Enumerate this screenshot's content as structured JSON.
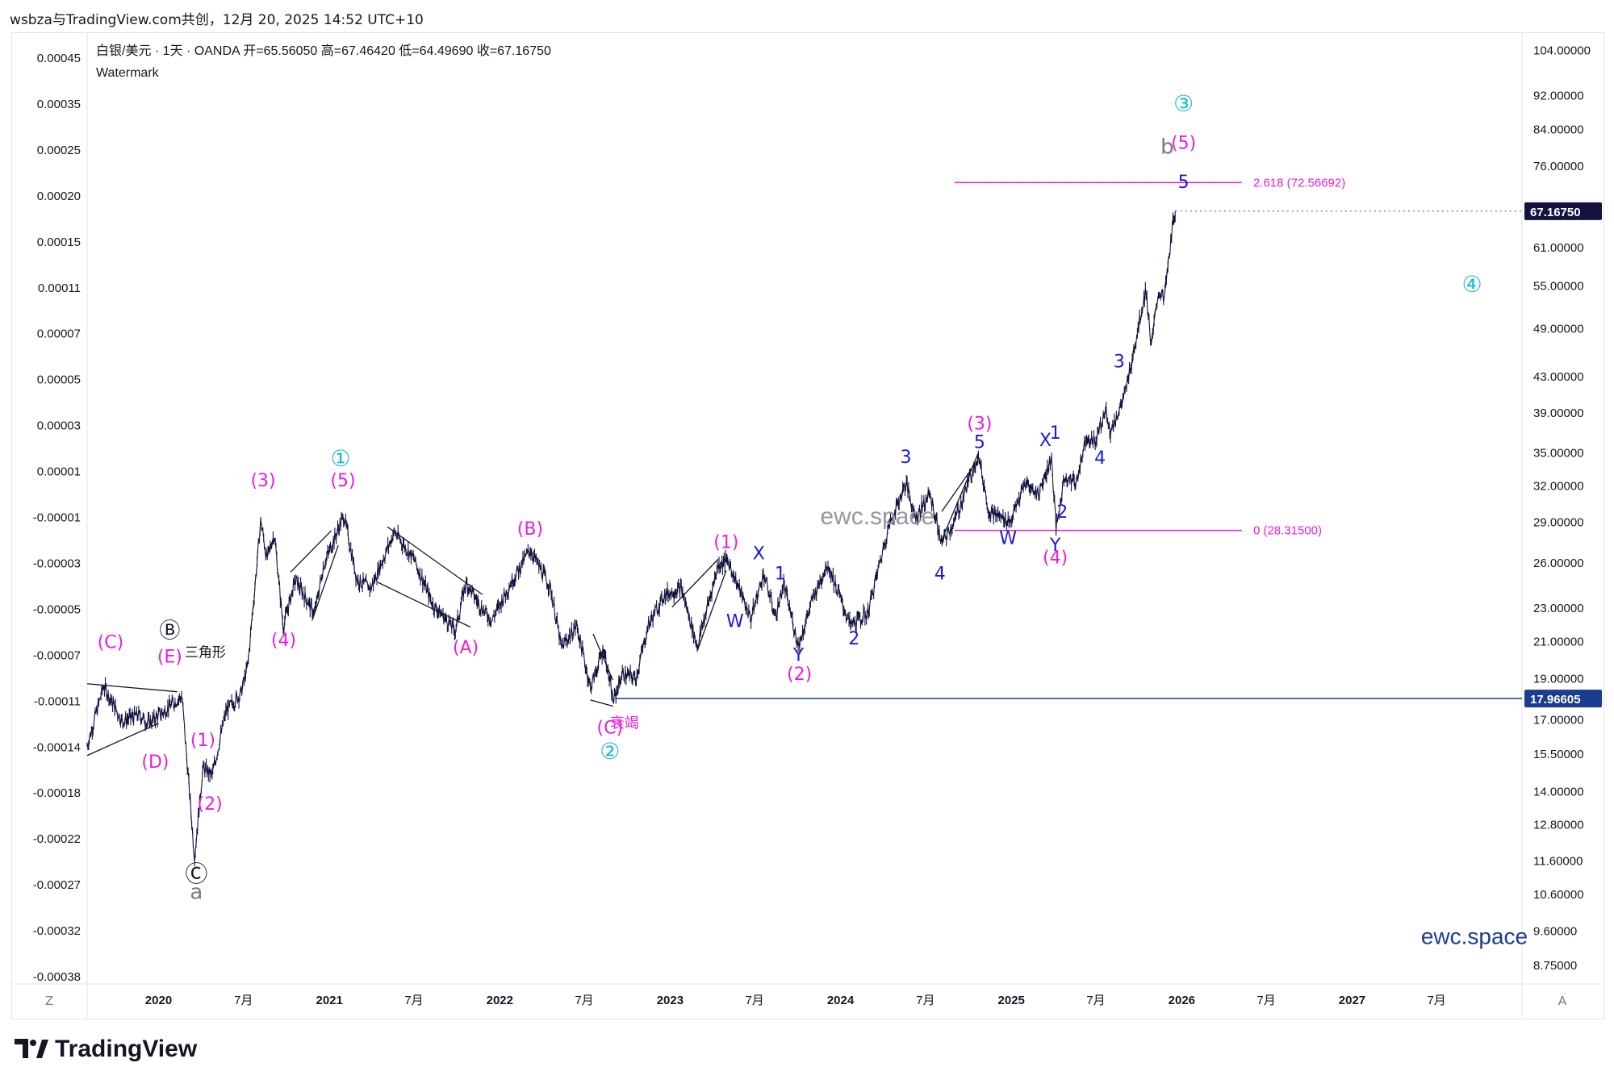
{
  "header": {
    "published": "wsbza与TradingView.com共创，12月 20, 2025 14:52 UTC+10",
    "symbol_line": "白银/美元 · 1天 · OANDA  开=65.56050  高=67.46420  低=64.49690  收=67.16750",
    "watermark_label": "Watermark"
  },
  "brand": {
    "name": "TradingView"
  },
  "axis_buttons": {
    "left": "Z",
    "right": "A"
  },
  "chart_data": {
    "type": "line",
    "series_kind": "candlestick-ohlc (rendered as dense bars)",
    "right_axis": {
      "scale": "log",
      "ticks": [
        8.75,
        9.6,
        10.6,
        11.6,
        12.8,
        14.0,
        15.5,
        17.0,
        19.0,
        21.0,
        23.0,
        26.0,
        29.0,
        32.0,
        35.0,
        39.0,
        43.0,
        49.0,
        55.0,
        61.0,
        76.0,
        84.0,
        92.0,
        104.0
      ],
      "tick_labels": [
        "8.75000",
        "9.60000",
        "10.60000",
        "11.60000",
        "12.80000",
        "14.00000",
        "15.50000",
        "17.00000",
        "19.00000",
        "21.00000",
        "23.00000",
        "26.00000",
        "29.00000",
        "32.00000",
        "35.00000",
        "39.00000",
        "43.00000",
        "49.00000",
        "55.00000",
        "61.00000",
        "76.00000",
        "84.00000",
        "92.00000",
        "104.00000"
      ],
      "last_price_label": "67.16750",
      "last_price": 67.1675,
      "hline_label": "17.96605",
      "hline_value": 17.96605
    },
    "left_axis": {
      "tick_labels": [
        "0.00045",
        "0.00035",
        "0.00025",
        "0.00020",
        "0.00015",
        "0.00011",
        "0.00007",
        "0.00005",
        "0.00003",
        "0.00001",
        "-0.00001",
        "-0.00003",
        "-0.00005",
        "-0.00007",
        "-0.00011",
        "-0.00014",
        "-0.00018",
        "-0.00022",
        "-0.00027",
        "-0.00032",
        "-0.00038"
      ]
    },
    "x_axis": {
      "range": [
        "2019-08-01",
        "2027-12-31"
      ],
      "ticks": [
        {
          "date": "2020-01-01",
          "label": "2020",
          "bold": true
        },
        {
          "date": "2020-07-01",
          "label": "7月",
          "bold": false
        },
        {
          "date": "2021-01-01",
          "label": "2021",
          "bold": true
        },
        {
          "date": "2021-07-01",
          "label": "7月",
          "bold": false
        },
        {
          "date": "2022-01-01",
          "label": "2022",
          "bold": true
        },
        {
          "date": "2022-07-01",
          "label": "7月",
          "bold": false
        },
        {
          "date": "2023-01-01",
          "label": "2023",
          "bold": true
        },
        {
          "date": "2023-07-01",
          "label": "7月",
          "bold": false
        },
        {
          "date": "2024-01-01",
          "label": "2024",
          "bold": true
        },
        {
          "date": "2024-07-01",
          "label": "7月",
          "bold": false
        },
        {
          "date": "2025-01-01",
          "label": "2025",
          "bold": true
        },
        {
          "date": "2025-07-01",
          "label": "7月",
          "bold": false
        },
        {
          "date": "2026-01-01",
          "label": "2026",
          "bold": true
        },
        {
          "date": "2026-07-01",
          "label": "7月",
          "bold": false
        },
        {
          "date": "2027-01-01",
          "label": "2027",
          "bold": true
        },
        {
          "date": "2027-07-01",
          "label": "7月",
          "bold": false
        }
      ]
    },
    "price_path": [
      [
        "2019-08-01",
        15.8
      ],
      [
        "2019-09-05",
        18.6
      ],
      [
        "2019-10-15",
        16.9
      ],
      [
        "2019-11-20",
        17.2
      ],
      [
        "2019-12-10",
        16.8
      ],
      [
        "2020-01-10",
        17.3
      ],
      [
        "2020-02-20",
        18.1
      ],
      [
        "2020-03-18",
        11.7
      ],
      [
        "2020-04-05",
        14.9
      ],
      [
        "2020-04-25",
        14.6
      ],
      [
        "2020-05-25",
        17.4
      ],
      [
        "2020-06-25",
        18.2
      ],
      [
        "2020-07-10",
        19.6
      ],
      [
        "2020-08-07",
        29.1
      ],
      [
        "2020-08-20",
        26.2
      ],
      [
        "2020-09-05",
        28.1
      ],
      [
        "2020-09-24",
        21.8
      ],
      [
        "2020-10-20",
        24.8
      ],
      [
        "2020-11-30",
        22.6
      ],
      [
        "2020-12-20",
        25.8
      ],
      [
        "2021-02-01",
        29.5
      ],
      [
        "2021-03-01",
        24.8
      ],
      [
        "2021-03-31",
        24.2
      ],
      [
        "2021-05-20",
        28.2
      ],
      [
        "2021-07-01",
        26.2
      ],
      [
        "2021-08-10",
        23.2
      ],
      [
        "2021-09-28",
        21.6
      ],
      [
        "2021-10-20",
        24.6
      ],
      [
        "2021-11-20",
        23.1
      ],
      [
        "2021-12-15",
        22.2
      ],
      [
        "2022-01-20",
        24.3
      ],
      [
        "2022-03-07",
        26.9
      ],
      [
        "2022-04-20",
        24.2
      ],
      [
        "2022-05-13",
        20.6
      ],
      [
        "2022-06-15",
        21.9
      ],
      [
        "2022-07-14",
        18.5
      ],
      [
        "2022-08-12",
        20.6
      ],
      [
        "2022-09-01",
        17.8
      ],
      [
        "2022-09-20",
        19.2
      ],
      [
        "2022-10-20",
        19.0
      ],
      [
        "2022-11-15",
        21.9
      ],
      [
        "2022-12-20",
        23.8
      ],
      [
        "2023-01-25",
        24.2
      ],
      [
        "2023-02-28",
        20.7
      ],
      [
        "2023-04-14",
        25.8
      ],
      [
        "2023-05-05",
        26.1
      ],
      [
        "2023-06-23",
        22.3
      ],
      [
        "2023-07-20",
        25.2
      ],
      [
        "2023-08-15",
        22.4
      ],
      [
        "2023-09-01",
        24.5
      ],
      [
        "2023-10-03",
        20.7
      ],
      [
        "2023-11-01",
        23.4
      ],
      [
        "2023-12-04",
        25.9
      ],
      [
        "2024-01-22",
        21.9
      ],
      [
        "2024-02-28",
        22.6
      ],
      [
        "2024-04-12",
        28.5
      ],
      [
        "2024-05-20",
        32.2
      ],
      [
        "2024-06-10",
        29.3
      ],
      [
        "2024-07-10",
        31.3
      ],
      [
        "2024-08-05",
        27.3
      ],
      [
        "2024-09-01",
        29.0
      ],
      [
        "2024-10-22",
        34.8
      ],
      [
        "2024-11-14",
        29.8
      ],
      [
        "2024-12-30",
        29.0
      ],
      [
        "2025-01-31",
        32.2
      ],
      [
        "2025-02-28",
        31.2
      ],
      [
        "2025-03-28",
        34.5
      ],
      [
        "2025-04-07",
        28.4
      ],
      [
        "2025-04-25",
        32.8
      ],
      [
        "2025-05-20",
        32.2
      ],
      [
        "2025-06-10",
        36.5
      ],
      [
        "2025-06-30",
        36.0
      ],
      [
        "2025-07-23",
        39.3
      ],
      [
        "2025-08-01",
        36.9
      ],
      [
        "2025-09-01",
        40.8
      ],
      [
        "2025-10-16",
        54.4
      ],
      [
        "2025-10-28",
        46.6
      ],
      [
        "2025-11-12",
        54.0
      ],
      [
        "2025-11-25",
        53.2
      ],
      [
        "2025-12-12",
        64.3
      ],
      [
        "2025-12-19",
        67.17
      ]
    ],
    "horizontal_lines": [
      {
        "value": 72.56692,
        "from": "2024-09-01",
        "to": "2026-05-10",
        "label": "2.618 (72.56692)",
        "color": "#e91edc"
      },
      {
        "value": 28.315,
        "from": "2024-09-01",
        "to": "2026-05-10",
        "label": "0 (28.31500)",
        "color": "#e91edc"
      },
      {
        "value": 17.96605,
        "from": "2022-09-05",
        "to": "2027-12-31",
        "label": "",
        "color": "#1a3d8f"
      }
    ],
    "trendlines": [
      {
        "points": [
          [
            "2019-08-01",
            15.4
          ],
          [
            "2020-01-01",
            16.8
          ]
        ],
        "color": "#131722"
      },
      {
        "points": [
          [
            "2019-08-01",
            18.7
          ],
          [
            "2020-02-10",
            18.3
          ]
        ],
        "color": "#131722"
      },
      {
        "points": [
          [
            "2020-11-25",
            22.2
          ],
          [
            "2021-01-20",
            27.2
          ]
        ],
        "color": "#131722"
      },
      {
        "points": [
          [
            "2020-10-10",
            25.3
          ],
          [
            "2021-01-05",
            28.3
          ]
        ],
        "color": "#131722"
      },
      {
        "points": [
          [
            "2021-05-05",
            28.6
          ],
          [
            "2021-11-25",
            23.8
          ]
        ],
        "color": "#131722"
      },
      {
        "points": [
          [
            "2021-04-15",
            24.6
          ],
          [
            "2021-10-30",
            21.8
          ]
        ],
        "color": "#131722"
      },
      {
        "points": [
          [
            "2022-07-14",
            17.9
          ],
          [
            "2022-09-01",
            17.6
          ]
        ],
        "color": "#131722"
      },
      {
        "points": [
          [
            "2022-07-20",
            21.4
          ],
          [
            "2022-08-31",
            18.9
          ]
        ],
        "color": "#131722"
      },
      {
        "points": [
          [
            "2023-01-05",
            23.0
          ],
          [
            "2023-04-14",
            26.2
          ]
        ],
        "color": "#131722"
      },
      {
        "points": [
          [
            "2023-03-01",
            20.5
          ],
          [
            "2023-05-01",
            25.4
          ]
        ],
        "color": "#131722"
      },
      {
        "points": [
          [
            "2024-08-05",
            27.6
          ],
          [
            "2024-10-22",
            34.9
          ]
        ],
        "color": "#131722"
      },
      {
        "points": [
          [
            "2024-08-05",
            29.8
          ],
          [
            "2024-10-20",
            34.2
          ]
        ],
        "color": "#131722"
      }
    ],
    "wave_labels": [
      {
        "text": "(C)",
        "date": "2019-09-20",
        "price": 20.6,
        "color": "#e91edc",
        "size": 22
      },
      {
        "text": "(D)",
        "date": "2019-12-25",
        "price": 14.9,
        "color": "#e91edc",
        "size": 22
      },
      {
        "text": "(E)",
        "date": "2020-01-25",
        "price": 19.8,
        "color": "#e91edc",
        "size": 22
      },
      {
        "text": "三角形",
        "date": "2020-04-10",
        "price": 20.1,
        "color": "#131722",
        "size": 17
      },
      {
        "text": "Ⓑ",
        "date": "2020-01-25",
        "price": 21.2,
        "color": "#131722",
        "size": 26
      },
      {
        "text": "(1)",
        "date": "2020-04-05",
        "price": 15.8,
        "color": "#e91edc",
        "size": 22
      },
      {
        "text": "(2)",
        "date": "2020-04-20",
        "price": 13.3,
        "color": "#e91edc",
        "size": 22
      },
      {
        "text": "Ⓒ",
        "date": "2020-03-22",
        "price": 10.95,
        "color": "#131722",
        "size": 28
      },
      {
        "text": "a",
        "date": "2020-03-22",
        "price": 10.45,
        "color": "#787b86",
        "size": 26
      },
      {
        "text": "(3)",
        "date": "2020-08-12",
        "price": 31.9,
        "color": "#e91edc",
        "size": 22
      },
      {
        "text": "(4)",
        "date": "2020-09-25",
        "price": 20.7,
        "color": "#e91edc",
        "size": 22
      },
      {
        "text": "①",
        "date": "2021-01-25",
        "price": 33.7,
        "color": "#1fb9d2",
        "size": 28
      },
      {
        "text": "(5)",
        "date": "2021-01-30",
        "price": 31.9,
        "color": "#e91edc",
        "size": 22
      },
      {
        "text": "(A)",
        "date": "2021-10-20",
        "price": 20.3,
        "color": "#e91edc",
        "size": 22
      },
      {
        "text": "(B)",
        "date": "2022-03-07",
        "price": 28.0,
        "color": "#e91edc",
        "size": 22
      },
      {
        "text": "(C)",
        "date": "2022-08-25",
        "price": 16.35,
        "color": "#e91edc",
        "size": 22
      },
      {
        "text": "衰竭",
        "date": "2022-09-25",
        "price": 16.6,
        "color": "#e91edc",
        "size": 18
      },
      {
        "text": "②",
        "date": "2022-08-25",
        "price": 15.25,
        "color": "#1fb9d2",
        "size": 28
      },
      {
        "text": "(1)",
        "date": "2023-05-01",
        "price": 27.0,
        "color": "#e91edc",
        "size": 22
      },
      {
        "text": "W",
        "date": "2023-05-20",
        "price": 21.8,
        "color": "#1a1adb",
        "size": 22
      },
      {
        "text": "X",
        "date": "2023-07-10",
        "price": 26.2,
        "color": "#1a1adb",
        "size": 22
      },
      {
        "text": "1",
        "date": "2023-08-25",
        "price": 24.8,
        "color": "#1a1adb",
        "size": 22
      },
      {
        "text": "Y",
        "date": "2023-10-03",
        "price": 19.9,
        "color": "#1a1adb",
        "size": 22
      },
      {
        "text": "(2)",
        "date": "2023-10-05",
        "price": 18.9,
        "color": "#e91edc",
        "size": 22
      },
      {
        "text": "2",
        "date": "2024-01-30",
        "price": 20.8,
        "color": "#1a1adb",
        "size": 22
      },
      {
        "text": "3",
        "date": "2024-05-20",
        "price": 34.0,
        "color": "#1a1adb",
        "size": 22
      },
      {
        "text": "4",
        "date": "2024-08-01",
        "price": 24.8,
        "color": "#1a1adb",
        "size": 22
      },
      {
        "text": "(3)",
        "date": "2024-10-25",
        "price": 37.2,
        "color": "#e91edc",
        "size": 22
      },
      {
        "text": "5",
        "date": "2024-10-25",
        "price": 35.4,
        "color": "#1a1adb",
        "size": 22
      },
      {
        "text": "W",
        "date": "2024-12-25",
        "price": 27.3,
        "color": "#1a1adb",
        "size": 22
      },
      {
        "text": "X",
        "date": "2025-03-15",
        "price": 35.6,
        "color": "#1a1adb",
        "size": 22
      },
      {
        "text": "1",
        "date": "2025-04-05",
        "price": 36.3,
        "color": "#1a1adb",
        "size": 22
      },
      {
        "text": "2",
        "date": "2025-04-20",
        "price": 29.3,
        "color": "#1a1adb",
        "size": 22
      },
      {
        "text": "Y",
        "date": "2025-04-05",
        "price": 26.8,
        "color": "#1a1adb",
        "size": 22
      },
      {
        "text": "(4)",
        "date": "2025-04-05",
        "price": 25.9,
        "color": "#e91edc",
        "size": 22
      },
      {
        "text": "4",
        "date": "2025-07-10",
        "price": 33.9,
        "color": "#1a1adb",
        "size": 22
      },
      {
        "text": "3",
        "date": "2025-08-20",
        "price": 44.0,
        "color": "#1a1adb",
        "size": 22
      },
      {
        "text": "b",
        "date": "2025-12-01",
        "price": 78.5,
        "color": "#787b86",
        "size": 26
      },
      {
        "text": "③",
        "date": "2026-01-05",
        "price": 88.0,
        "color": "#1fb9d2",
        "size": 28
      },
      {
        "text": "(5)",
        "date": "2026-01-05",
        "price": 79.5,
        "color": "#e91edc",
        "size": 22
      },
      {
        "text": "5",
        "date": "2026-01-05",
        "price": 71.5,
        "color": "#1a1adb",
        "size": 22
      },
      {
        "text": "④",
        "date": "2027-09-15",
        "price": 54.0,
        "color": "#1fb9d2",
        "size": 28
      }
    ],
    "overlay_texts": [
      {
        "text": "ewc.space",
        "date": "2024-03-20",
        "price": 28.8,
        "color": "#9598a1",
        "size": 30
      },
      {
        "text": "ewc.space",
        "date": "2027-09-20",
        "price": 9.25,
        "color": "#1a3d8f",
        "size": 28
      }
    ]
  }
}
